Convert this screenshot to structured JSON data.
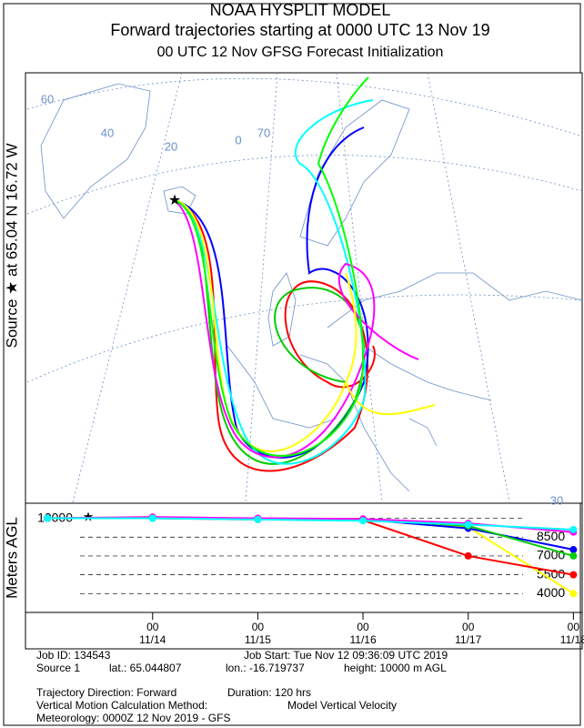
{
  "header": {
    "line1": "NOAA HYSPLIT MODEL",
    "line2": "Forward trajectories starting at 0000 UTC 13 Nov 19",
    "line3": "00 UTC 12 Nov    GFSG  Forecast Initialization"
  },
  "map": {
    "source_label": "Source ★ at 65.04 N 16.72 W",
    "grid_labels": [
      "60",
      "40",
      "20",
      "0",
      "70",
      "30"
    ]
  },
  "chart_data": {
    "type": "line",
    "y_label": "Meters AGL",
    "x": [
      0,
      24,
      48,
      72,
      96,
      120
    ],
    "xlim": [
      -5,
      122
    ],
    "xticks": [
      {
        "value": 24,
        "label": "11/14"
      },
      {
        "value": 48,
        "label": "11/15"
      },
      {
        "value": 72,
        "label": "11/16"
      },
      {
        "value": 96,
        "label": "11/17"
      },
      {
        "value": 120,
        "label": "11/18"
      }
    ],
    "xtick_hour": "00",
    "ylim": [
      2500,
      11200
    ],
    "yticks": [
      10000,
      8500,
      7000,
      5500,
      4000
    ],
    "series": [
      {
        "color": "#ffff00",
        "values": [
          10000,
          10100,
          9900,
          9950,
          9300,
          4000
        ]
      },
      {
        "color": "#ff0000",
        "values": [
          10000,
          10000,
          9900,
          9850,
          7000,
          5500
        ]
      },
      {
        "color": "#0000ff",
        "values": [
          10000,
          10050,
          9950,
          9900,
          9200,
          7500
        ]
      },
      {
        "color": "#00cc00",
        "values": [
          10000,
          10000,
          9950,
          9900,
          9400,
          7000
        ]
      },
      {
        "color": "#ff00ff",
        "values": [
          10000,
          10100,
          10000,
          9950,
          9600,
          8900
        ]
      },
      {
        "color": "#00ffff",
        "values": [
          10000,
          10000,
          9900,
          9800,
          9500,
          9100
        ]
      }
    ]
  },
  "footer": {
    "job_id": "Job ID: 134543",
    "job_start": "Job Start: Tue Nov 12 09:36:09 UTC 2019",
    "source": "Source 1",
    "lat": "lat.: 65.044807",
    "lon": "lon.: -16.719737",
    "height": "height: 10000 m AGL",
    "direction": "Trajectory Direction: Forward",
    "duration": "Duration: 120 hrs",
    "vertical_method": "Vertical Motion Calculation Method:",
    "vertical_value": "Model Vertical Velocity",
    "meteorology": "Meteorology: 0000Z 12 Nov 2019 - GFS"
  }
}
